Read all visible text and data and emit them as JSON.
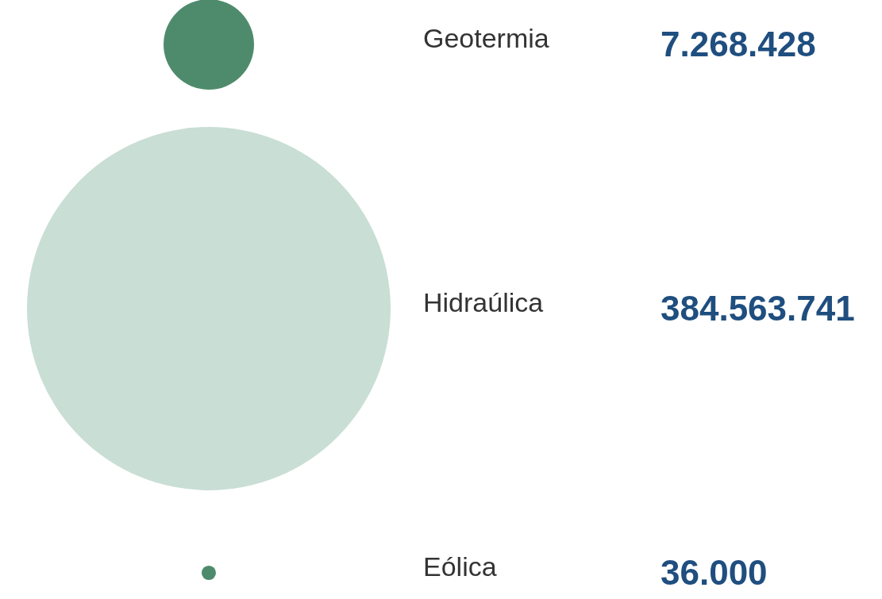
{
  "chart_data": {
    "type": "other",
    "categories": [
      "Geotermia",
      "Hidraúlica",
      "Eólica"
    ],
    "value_labels": [
      "7.268.428",
      "384.563.741",
      "36.000"
    ],
    "values": [
      7268428,
      384563741,
      36000
    ],
    "colors": [
      "#4e8b6c",
      "#c9ded4",
      "#4e8b6c"
    ]
  }
}
